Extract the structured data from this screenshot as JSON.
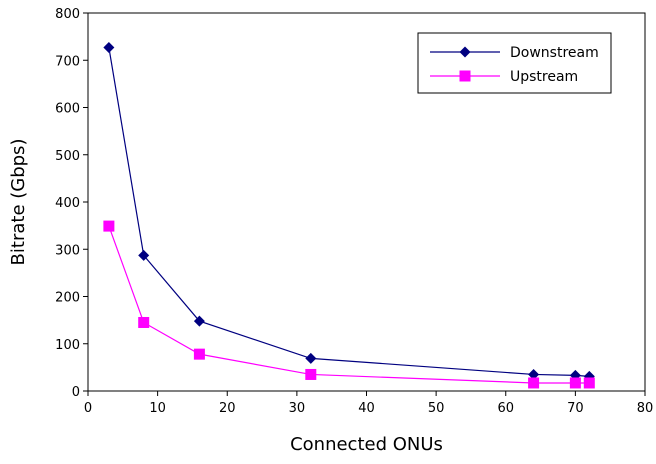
{
  "chart_data": {
    "type": "line",
    "title": "",
    "xlabel": "Connected ONUs",
    "ylabel": "Bitrate (Gbps)",
    "xlim": [
      0,
      80
    ],
    "ylim": [
      0,
      800
    ],
    "xticks": [
      0,
      10,
      20,
      30,
      40,
      50,
      60,
      70,
      80
    ],
    "yticks": [
      0,
      100,
      200,
      300,
      400,
      500,
      600,
      700,
      800
    ],
    "grid": false,
    "legend_position": "top-right",
    "series": [
      {
        "name": "Downstream",
        "color": "#000080",
        "marker": "diamond",
        "x": [
          3,
          8,
          16,
          32,
          64,
          70,
          72
        ],
        "y": [
          727,
          287,
          148,
          69,
          35,
          33,
          31
        ]
      },
      {
        "name": "Upstream",
        "color": "#ff00ff",
        "marker": "square",
        "x": [
          3,
          8,
          16,
          32,
          64,
          70,
          72
        ],
        "y": [
          349,
          145,
          78,
          35,
          17,
          17,
          17
        ]
      }
    ]
  }
}
